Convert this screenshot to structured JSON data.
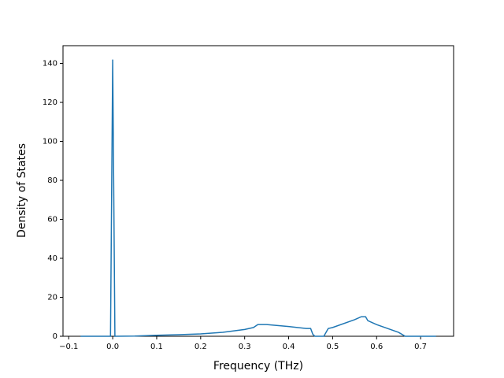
{
  "chart_data": {
    "type": "line",
    "x_label": "Frequency (THz)",
    "y_label": "Density of States",
    "x": [
      -0.073,
      -0.005,
      0.0,
      0.005,
      0.05,
      0.1,
      0.15,
      0.2,
      0.25,
      0.3,
      0.32,
      0.33,
      0.35,
      0.4,
      0.44,
      0.45,
      0.455,
      0.46,
      0.48,
      0.49,
      0.5,
      0.55,
      0.565,
      0.575,
      0.58,
      0.6,
      0.65,
      0.665,
      0.735
    ],
    "series": [
      {
        "color": "#1f77b4",
        "values": [
          0,
          0,
          142,
          0,
          0.1,
          0.5,
          0.8,
          1.2,
          2.0,
          3.5,
          4.5,
          6,
          6,
          5,
          4,
          4,
          1,
          0,
          0,
          4,
          4.5,
          8.5,
          10,
          10,
          8,
          6,
          2,
          0,
          0
        ]
      }
    ],
    "xlim": [
      -0.113,
      0.775
    ],
    "ylim": [
      0,
      149.1
    ],
    "xticks": [
      {
        "value": -0.1,
        "label": "−0.1"
      },
      {
        "value": 0,
        "label": "0.0"
      },
      0.1,
      0.2,
      0.3,
      0.4,
      0.5,
      0.6,
      0.7
    ],
    "yticks": [
      0,
      20,
      40,
      60,
      80,
      100,
      120,
      140
    ]
  }
}
